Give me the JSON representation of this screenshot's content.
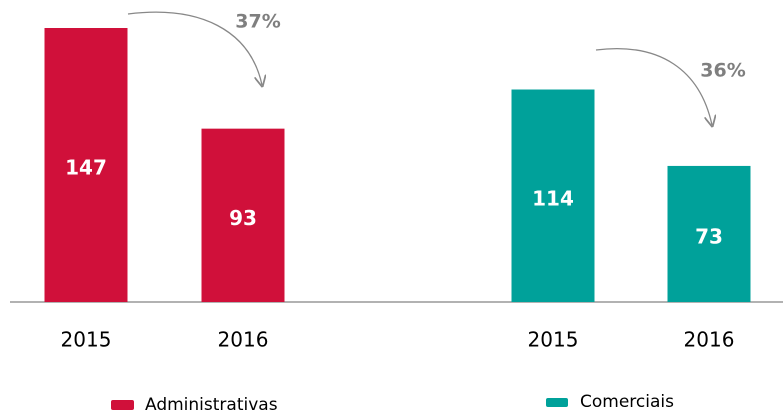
{
  "chart_data": {
    "type": "bar",
    "categories": [
      "2015",
      "2016"
    ],
    "series": [
      {
        "name": "Administrativas",
        "color": "#d0103a",
        "values": [
          147,
          93
        ]
      },
      {
        "name": "Comerciais",
        "color": "#00a19a",
        "values": [
          114,
          73
        ]
      }
    ],
    "annotations": [
      "37%",
      "36%"
    ]
  }
}
